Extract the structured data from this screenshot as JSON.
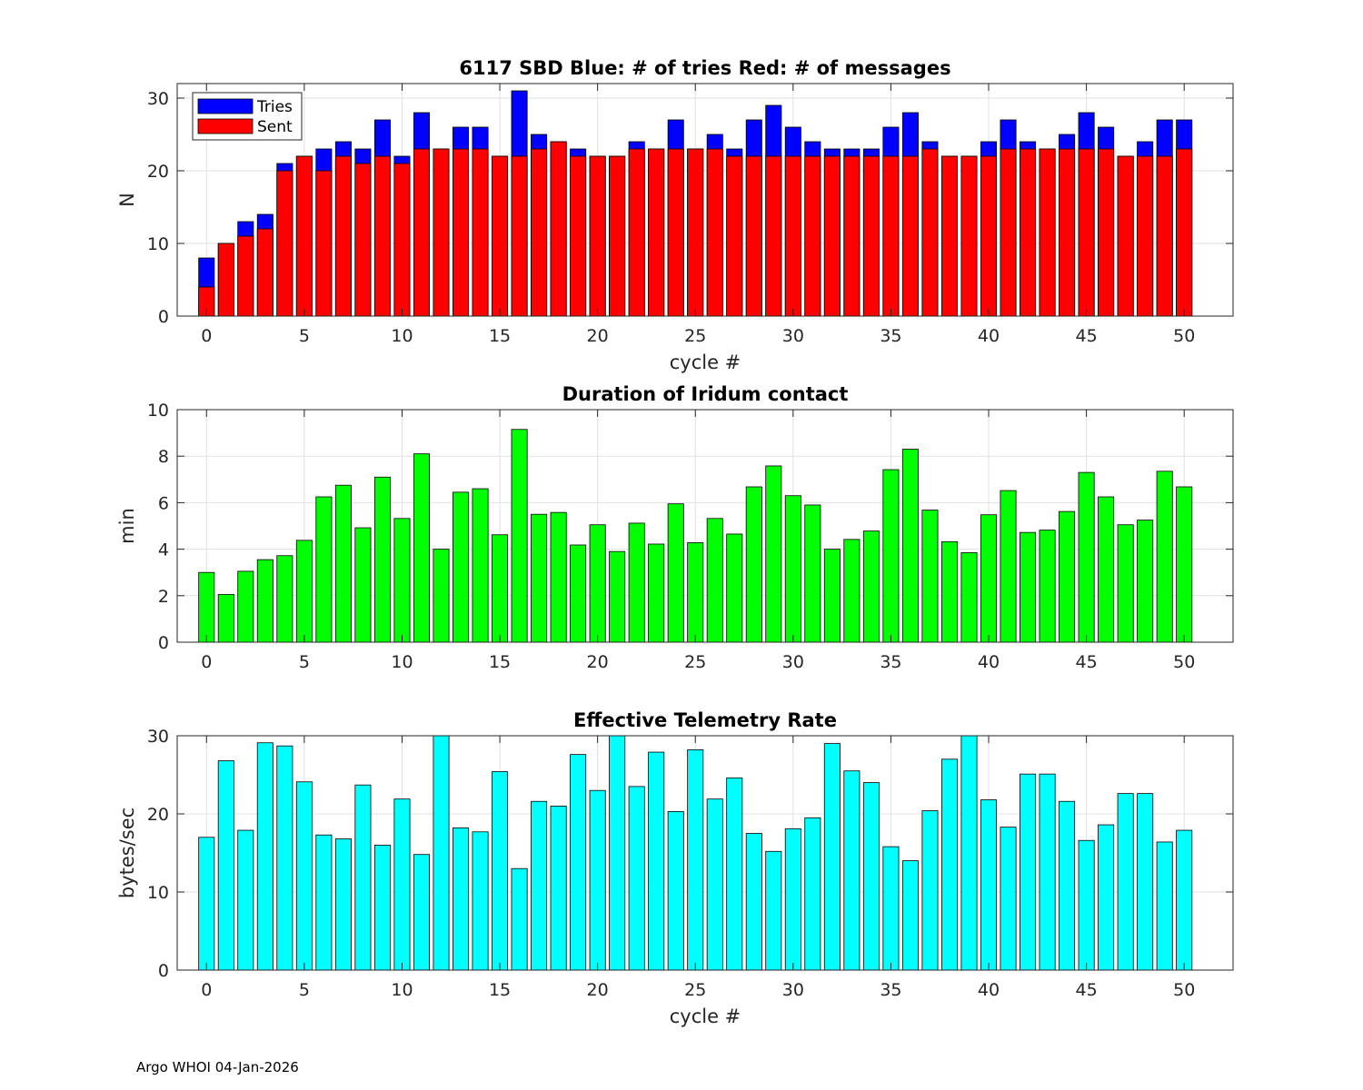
{
  "figure": {
    "footer": "Argo WHOI 04-Jan-2026"
  },
  "chart_data": [
    {
      "type": "bar",
      "title": "6117 SBD  Blue: # of tries   Red: # of messages",
      "xlabel": "cycle #",
      "ylabel": "N",
      "xlim": [
        -1.5,
        52.5
      ],
      "ylim": [
        0,
        32
      ],
      "xticks": [
        0,
        5,
        10,
        15,
        20,
        25,
        30,
        35,
        40,
        45,
        50
      ],
      "yticks": [
        0,
        10,
        20,
        30
      ],
      "grid": true,
      "legend": {
        "position": "top-left",
        "entries": [
          "Tries",
          "Sent"
        ]
      },
      "x": [
        0,
        1,
        2,
        3,
        4,
        5,
        6,
        7,
        8,
        9,
        10,
        11,
        12,
        13,
        14,
        15,
        16,
        17,
        18,
        19,
        20,
        21,
        22,
        23,
        24,
        25,
        26,
        27,
        28,
        29,
        30,
        31,
        32,
        33,
        34,
        35,
        36,
        37,
        38,
        39,
        40,
        41,
        42,
        43,
        44,
        45,
        46,
        47,
        48,
        49,
        50
      ],
      "series": [
        {
          "name": "Tries",
          "color": "#0000ff",
          "values": [
            8,
            10,
            13,
            14,
            21,
            22,
            23,
            24,
            23,
            27,
            22,
            28,
            23,
            26,
            26,
            22,
            31,
            25,
            24,
            23,
            22,
            22,
            24,
            23,
            27,
            23,
            25,
            23,
            27,
            29,
            26,
            24,
            23,
            23,
            23,
            26,
            28,
            24,
            22,
            22,
            24,
            27,
            24,
            23,
            25,
            28,
            26,
            22,
            24,
            27,
            27
          ]
        },
        {
          "name": "Sent",
          "color": "#ff0000",
          "values": [
            4,
            10,
            11,
            12,
            20,
            22,
            20,
            22,
            21,
            22,
            21,
            23,
            23,
            23,
            23,
            22,
            22,
            23,
            24,
            22,
            22,
            22,
            23,
            23,
            23,
            23,
            23,
            22,
            22,
            22,
            22,
            22,
            22,
            22,
            22,
            22,
            22,
            23,
            22,
            22,
            22,
            23,
            23,
            23,
            23,
            23,
            23,
            22,
            22,
            22,
            23
          ]
        }
      ]
    },
    {
      "type": "bar",
      "title": "Duration of Iridum contact",
      "xlabel": "",
      "ylabel": "min",
      "xlim": [
        -1.5,
        52.5
      ],
      "ylim": [
        0,
        10
      ],
      "xticks": [
        0,
        5,
        10,
        15,
        20,
        25,
        30,
        35,
        40,
        45,
        50
      ],
      "yticks": [
        0,
        2,
        4,
        6,
        8,
        10
      ],
      "grid": true,
      "x": [
        -1,
        0,
        1,
        2,
        3,
        4,
        5,
        6,
        7,
        8,
        9,
        10,
        11,
        12,
        13,
        14,
        15,
        16,
        17,
        18,
        19,
        20,
        21,
        22,
        23,
        24,
        25,
        26,
        27,
        28,
        29,
        30,
        31,
        32,
        33,
        34,
        35,
        36,
        37,
        38,
        39,
        40,
        41,
        42,
        43,
        44,
        45,
        46,
        47,
        48,
        49,
        50
      ],
      "series": [
        {
          "name": "Duration",
          "color": "#00ff00",
          "values": [
            0,
            3.0,
            2.05,
            3.05,
            3.55,
            3.72,
            4.38,
            6.25,
            6.75,
            4.92,
            7.1,
            5.32,
            8.1,
            4.0,
            6.45,
            6.6,
            4.62,
            9.15,
            5.5,
            5.58,
            4.18,
            5.05,
            3.9,
            5.12,
            4.22,
            5.95,
            4.28,
            5.32,
            4.65,
            6.68,
            7.58,
            6.3,
            5.9,
            4.0,
            4.42,
            4.78,
            7.42,
            8.3,
            5.68,
            4.32,
            3.85,
            5.48,
            6.52,
            4.72,
            4.82,
            5.62,
            7.3,
            6.25,
            5.05,
            5.25,
            7.35,
            6.68
          ]
        }
      ]
    },
    {
      "type": "bar",
      "title": "Effective Telemetry Rate",
      "xlabel": "cycle #",
      "ylabel": "bytes/sec",
      "xlim": [
        -1.5,
        52.5
      ],
      "ylim": [
        0,
        30
      ],
      "xticks": [
        0,
        5,
        10,
        15,
        20,
        25,
        30,
        35,
        40,
        45,
        50
      ],
      "yticks": [
        0,
        10,
        20,
        30
      ],
      "grid": true,
      "x": [
        0,
        1,
        2,
        3,
        4,
        5,
        6,
        7,
        8,
        9,
        10,
        11,
        12,
        13,
        14,
        15,
        16,
        17,
        18,
        19,
        20,
        21,
        22,
        23,
        24,
        25,
        26,
        27,
        28,
        29,
        30,
        31,
        32,
        33,
        34,
        35,
        36,
        37,
        38,
        39,
        40,
        41,
        42,
        43,
        44,
        45,
        46,
        47,
        48,
        49,
        50
      ],
      "series": [
        {
          "name": "Rate",
          "color": "#00ffff",
          "values": [
            17.0,
            26.8,
            17.9,
            29.1,
            28.7,
            24.1,
            17.3,
            16.8,
            23.7,
            16.0,
            21.9,
            14.8,
            30.0,
            18.2,
            17.7,
            25.4,
            13.0,
            21.6,
            21.0,
            27.6,
            23.0,
            30.0,
            23.5,
            27.9,
            20.3,
            28.2,
            21.9,
            24.6,
            17.5,
            15.2,
            18.1,
            19.5,
            29.0,
            25.5,
            24.0,
            15.8,
            14.0,
            20.4,
            27.0,
            30.0,
            21.8,
            18.3,
            25.1,
            25.1,
            21.6,
            16.6,
            18.6,
            22.6,
            22.6,
            16.4,
            17.9
          ]
        }
      ]
    }
  ]
}
